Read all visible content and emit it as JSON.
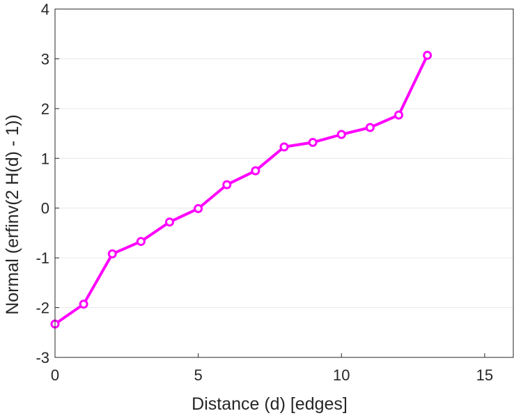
{
  "chart_data": {
    "type": "line",
    "title": "",
    "xlabel": "Distance (d) [edges]",
    "ylabel": "Normal (erfinv(2 H(d) - 1))",
    "xlim": [
      0,
      16
    ],
    "ylim": [
      -3,
      4
    ],
    "xticks": [
      0,
      5,
      10,
      15
    ],
    "yticks": [
      -3,
      -2,
      -1,
      0,
      1,
      2,
      3,
      4
    ],
    "grid": "horizontal",
    "series": [
      {
        "color": "#ff00ff",
        "marker": "circle",
        "x": [
          0,
          1,
          2,
          3,
          4,
          5,
          6,
          7,
          8,
          9,
          10,
          11,
          12,
          13
        ],
        "y": [
          -2.33,
          -1.93,
          -0.92,
          -0.67,
          -0.28,
          -0.01,
          0.47,
          0.75,
          1.23,
          1.32,
          1.48,
          1.62,
          1.87,
          3.07
        ]
      }
    ]
  }
}
